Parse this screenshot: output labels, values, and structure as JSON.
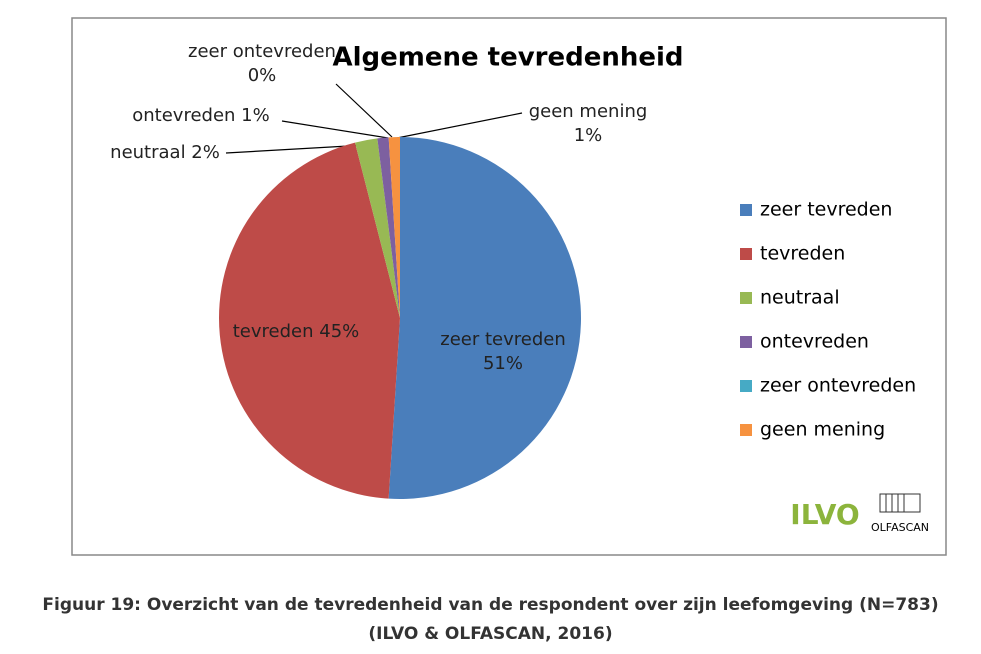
{
  "chart_data": {
    "type": "pie",
    "title": "Algemene tevredenheid",
    "categories": [
      "zeer tevreden",
      "tevreden",
      "neutraal",
      "ontevreden",
      "zeer ontevreden",
      "geen mening"
    ],
    "values": [
      51,
      45,
      2,
      1,
      0,
      1
    ],
    "value_labels": [
      "zeer tevreden 51%",
      "tevreden 45%",
      "neutraal 2%",
      "ontevreden 1%",
      "zeer ontevreden 0%",
      "geen mening 1%"
    ],
    "colors": [
      "#4a7ebb",
      "#be4b48",
      "#98b954",
      "#7d60a0",
      "#46aac5",
      "#f69240"
    ],
    "legend": "right",
    "logos": [
      "ILVO",
      "OLFASCAN"
    ]
  },
  "caption": [
    "Figuur 19: Overzicht van de tevredenheid van de respondent over zijn leefomgeving (N=783)",
    "(ILVO & OLFASCAN, 2016)"
  ]
}
